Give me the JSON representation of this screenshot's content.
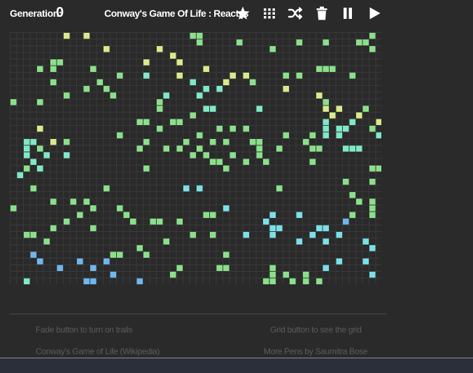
{
  "header": {
    "generation_label": "Generation:",
    "generation_value": "0",
    "title": "Conway's Game Of Life : React.js"
  },
  "toolbar": [
    {
      "name": "fade-button",
      "icon": "star-icon"
    },
    {
      "name": "grid-button",
      "icon": "grid-dots-icon"
    },
    {
      "name": "randomize-button",
      "icon": "shuffle-icon"
    },
    {
      "name": "clear-button",
      "icon": "trash-icon"
    },
    {
      "name": "pause-button",
      "icon": "pause-icon"
    },
    {
      "name": "play-button",
      "icon": "play-icon"
    }
  ],
  "board": {
    "cols": 56,
    "rows": 38,
    "colors": {
      "background": "#2a2a2a",
      "grid": "#3a3a3a",
      "yellow": "#d8ea8a",
      "green": "#8ae08a",
      "teal": "#7ee8c8",
      "cyan": "#7ae0e8",
      "blue": "#6fb6ee"
    },
    "cells": [
      [
        8,
        0,
        "y"
      ],
      [
        11,
        0,
        "y"
      ],
      [
        27,
        0,
        "g"
      ],
      [
        28,
        0,
        "g"
      ],
      [
        54,
        0,
        "g"
      ],
      [
        28,
        1,
        "g"
      ],
      [
        34,
        1,
        "g"
      ],
      [
        43,
        1,
        "g"
      ],
      [
        47,
        1,
        "g"
      ],
      [
        52,
        1,
        "g"
      ],
      [
        53,
        1,
        "g"
      ],
      [
        14,
        2,
        "y"
      ],
      [
        22,
        2,
        "y"
      ],
      [
        39,
        2,
        "g"
      ],
      [
        54,
        2,
        "g"
      ],
      [
        24,
        3,
        "y"
      ],
      [
        6,
        4,
        "g"
      ],
      [
        7,
        4,
        "g"
      ],
      [
        20,
        4,
        "y"
      ],
      [
        25,
        4,
        "y"
      ],
      [
        4,
        5,
        "g"
      ],
      [
        6,
        5,
        "g"
      ],
      [
        12,
        5,
        "g"
      ],
      [
        29,
        5,
        "y"
      ],
      [
        46,
        5,
        "g"
      ],
      [
        47,
        5,
        "g"
      ],
      [
        48,
        5,
        "g"
      ],
      [
        16,
        6,
        "g"
      ],
      [
        20,
        6,
        "t"
      ],
      [
        25,
        6,
        "y"
      ],
      [
        33,
        6,
        "y"
      ],
      [
        35,
        6,
        "y"
      ],
      [
        41,
        6,
        "g"
      ],
      [
        43,
        6,
        "g"
      ],
      [
        51,
        6,
        "g"
      ],
      [
        6,
        7,
        "g"
      ],
      [
        13,
        7,
        "g"
      ],
      [
        27,
        7,
        "t"
      ],
      [
        32,
        7,
        "y"
      ],
      [
        36,
        7,
        "g"
      ],
      [
        11,
        8,
        "g"
      ],
      [
        14,
        8,
        "g"
      ],
      [
        29,
        8,
        "t"
      ],
      [
        31,
        8,
        "t"
      ],
      [
        41,
        8,
        "y"
      ],
      [
        8,
        9,
        "g"
      ],
      [
        15,
        9,
        "g"
      ],
      [
        23,
        9,
        "t"
      ],
      [
        28,
        9,
        "t"
      ],
      [
        46,
        9,
        "y"
      ],
      [
        0,
        10,
        "g"
      ],
      [
        4,
        10,
        "g"
      ],
      [
        22,
        10,
        "g"
      ],
      [
        47,
        10,
        "g"
      ],
      [
        22,
        11,
        "g"
      ],
      [
        29,
        11,
        "t"
      ],
      [
        30,
        11,
        "t"
      ],
      [
        37,
        11,
        "t"
      ],
      [
        47,
        11,
        "y"
      ],
      [
        49,
        11,
        "y"
      ],
      [
        53,
        11,
        "g"
      ],
      [
        27,
        12,
        "g"
      ],
      [
        48,
        12,
        "y"
      ],
      [
        52,
        12,
        "y"
      ],
      [
        19,
        13,
        "g"
      ],
      [
        20,
        13,
        "g"
      ],
      [
        24,
        13,
        "g"
      ],
      [
        25,
        13,
        "g"
      ],
      [
        47,
        13,
        "t"
      ],
      [
        51,
        13,
        "t"
      ],
      [
        55,
        13,
        "y"
      ],
      [
        4,
        14,
        "y"
      ],
      [
        22,
        14,
        "g"
      ],
      [
        31,
        14,
        "g"
      ],
      [
        33,
        14,
        "g"
      ],
      [
        35,
        14,
        "g"
      ],
      [
        47,
        14,
        "t"
      ],
      [
        49,
        14,
        "t"
      ],
      [
        50,
        14,
        "t"
      ],
      [
        54,
        14,
        "g"
      ],
      [
        16,
        15,
        "g"
      ],
      [
        28,
        15,
        "g"
      ],
      [
        41,
        15,
        "g"
      ],
      [
        45,
        15,
        "g"
      ],
      [
        47,
        15,
        "t"
      ],
      [
        49,
        15,
        "t"
      ],
      [
        55,
        15,
        "t"
      ],
      [
        2,
        16,
        "t"
      ],
      [
        3,
        16,
        "t"
      ],
      [
        6,
        16,
        "y"
      ],
      [
        8,
        16,
        "g"
      ],
      [
        20,
        16,
        "g"
      ],
      [
        26,
        16,
        "g"
      ],
      [
        30,
        16,
        "g"
      ],
      [
        32,
        16,
        "g"
      ],
      [
        36,
        16,
        "g"
      ],
      [
        37,
        16,
        "g"
      ],
      [
        44,
        16,
        "g"
      ],
      [
        2,
        17,
        "t"
      ],
      [
        4,
        17,
        "g"
      ],
      [
        19,
        17,
        "g"
      ],
      [
        23,
        17,
        "g"
      ],
      [
        25,
        17,
        "g"
      ],
      [
        28,
        17,
        "g"
      ],
      [
        37,
        17,
        "g"
      ],
      [
        40,
        17,
        "g"
      ],
      [
        45,
        17,
        "g"
      ],
      [
        46,
        17,
        "g"
      ],
      [
        50,
        17,
        "t"
      ],
      [
        51,
        17,
        "t"
      ],
      [
        52,
        17,
        "t"
      ],
      [
        2,
        18,
        "t"
      ],
      [
        5,
        18,
        "t"
      ],
      [
        8,
        18,
        "t"
      ],
      [
        27,
        18,
        "g"
      ],
      [
        29,
        18,
        "g"
      ],
      [
        33,
        18,
        "g"
      ],
      [
        37,
        18,
        "g"
      ],
      [
        3,
        19,
        "t"
      ],
      [
        30,
        19,
        "g"
      ],
      [
        31,
        19,
        "g"
      ],
      [
        35,
        19,
        "g"
      ],
      [
        38,
        19,
        "g"
      ],
      [
        45,
        19,
        "g"
      ],
      [
        2,
        20,
        "g"
      ],
      [
        4,
        20,
        "t"
      ],
      [
        20,
        20,
        "g"
      ],
      [
        32,
        20,
        "g"
      ],
      [
        54,
        20,
        "g"
      ],
      [
        55,
        20,
        "g"
      ],
      [
        1,
        21,
        "t"
      ],
      [
        50,
        22,
        "g"
      ],
      [
        54,
        22,
        "g"
      ],
      [
        3,
        23,
        "g"
      ],
      [
        14,
        23,
        "g"
      ],
      [
        26,
        23,
        "c"
      ],
      [
        28,
        23,
        "c"
      ],
      [
        40,
        23,
        "g"
      ],
      [
        51,
        24,
        "g"
      ],
      [
        6,
        25,
        "g"
      ],
      [
        9,
        25,
        "g"
      ],
      [
        11,
        25,
        "g"
      ],
      [
        52,
        25,
        "g"
      ],
      [
        54,
        25,
        "g"
      ],
      [
        0,
        26,
        "g"
      ],
      [
        12,
        26,
        "g"
      ],
      [
        16,
        26,
        "g"
      ],
      [
        32,
        26,
        "c"
      ],
      [
        54,
        26,
        "g"
      ],
      [
        10,
        27,
        "g"
      ],
      [
        17,
        27,
        "g"
      ],
      [
        29,
        27,
        "g"
      ],
      [
        30,
        27,
        "g"
      ],
      [
        39,
        27,
        "c"
      ],
      [
        43,
        27,
        "c"
      ],
      [
        51,
        27,
        "g"
      ],
      [
        54,
        27,
        "g"
      ],
      [
        8,
        28,
        "g"
      ],
      [
        18,
        28,
        "g"
      ],
      [
        21,
        28,
        "g"
      ],
      [
        22,
        28,
        "g"
      ],
      [
        25,
        28,
        "g"
      ],
      [
        38,
        28,
        "c"
      ],
      [
        50,
        28,
        "b"
      ],
      [
        6,
        29,
        "g"
      ],
      [
        12,
        29,
        "g"
      ],
      [
        39,
        29,
        "c"
      ],
      [
        40,
        29,
        "c"
      ],
      [
        46,
        29,
        "c"
      ],
      [
        47,
        29,
        "c"
      ],
      [
        2,
        30,
        "g"
      ],
      [
        3,
        30,
        "g"
      ],
      [
        27,
        30,
        "g"
      ],
      [
        30,
        30,
        "g"
      ],
      [
        35,
        30,
        "c"
      ],
      [
        39,
        30,
        "c"
      ],
      [
        45,
        30,
        "c"
      ],
      [
        49,
        30,
        "c"
      ],
      [
        5,
        31,
        "g"
      ],
      [
        23,
        31,
        "g"
      ],
      [
        43,
        31,
        "c"
      ],
      [
        47,
        31,
        "c"
      ],
      [
        53,
        31,
        "c"
      ],
      [
        19,
        32,
        "g"
      ],
      [
        54,
        32,
        "c"
      ],
      [
        3,
        33,
        "b"
      ],
      [
        15,
        33,
        "g"
      ],
      [
        16,
        33,
        "g"
      ],
      [
        20,
        33,
        "g"
      ],
      [
        32,
        33,
        "g"
      ],
      [
        4,
        34,
        "b"
      ],
      [
        10,
        34,
        "b"
      ],
      [
        14,
        34,
        "b"
      ],
      [
        49,
        34,
        "c"
      ],
      [
        53,
        34,
        "c"
      ],
      [
        7,
        35,
        "b"
      ],
      [
        12,
        35,
        "b"
      ],
      [
        25,
        35,
        "g"
      ],
      [
        31,
        35,
        "g"
      ],
      [
        32,
        35,
        "g"
      ],
      [
        39,
        35,
        "g"
      ],
      [
        47,
        35,
        "c"
      ],
      [
        15,
        36,
        "b"
      ],
      [
        24,
        36,
        "g"
      ],
      [
        39,
        36,
        "g"
      ],
      [
        41,
        36,
        "g"
      ],
      [
        44,
        36,
        "g"
      ],
      [
        54,
        36,
        "c"
      ],
      [
        2,
        37,
        "t"
      ],
      [
        11,
        37,
        "b"
      ],
      [
        12,
        37,
        "b"
      ],
      [
        19,
        37,
        "b"
      ],
      [
        38,
        37,
        "g"
      ],
      [
        39,
        37,
        "g"
      ],
      [
        42,
        37,
        "g"
      ],
      [
        44,
        37,
        "g"
      ],
      [
        46,
        37,
        "g"
      ]
    ]
  },
  "footer": {
    "links": [
      "Fade button to turn on trails",
      "Grid button to see the grid",
      "Conway's Game of Life (Wikipedia)",
      "More Pens by Saumitra Bose"
    ]
  }
}
